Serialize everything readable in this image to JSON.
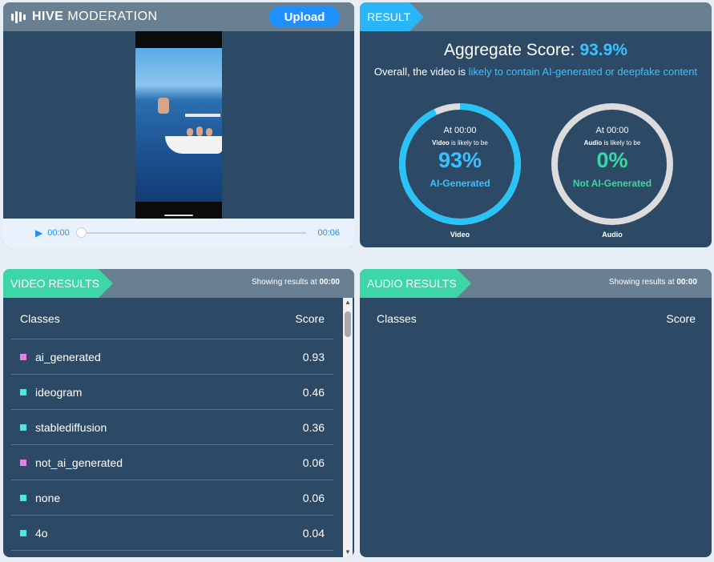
{
  "media": {
    "brand_bold": "HIVE",
    "brand_light": "MODERATION",
    "upload_label": "Upload",
    "current_time": "00:00",
    "duration": "00:06",
    "progress_fraction": 0
  },
  "result": {
    "tab_label": "RESULT",
    "aggregate_label": "Aggregate Score:",
    "aggregate_value": "93.9%",
    "overall_prefix": "Overall, the video is ",
    "overall_highlight": "likely to contain AI-generated or deepfake content",
    "video_gauge": {
      "at": "At 00:00",
      "likely_bold": "Video",
      "likely_rest": " is likely to be",
      "percent": "93%",
      "label": "AI-Generated",
      "caption": "Video",
      "fraction": 0.93,
      "color": "#29c3f7"
    },
    "audio_gauge": {
      "at": "At 00:00",
      "likely_bold": "Audio",
      "likely_rest": " is likely to be",
      "percent": "0%",
      "label": "Not AI-Generated",
      "caption": "Audio",
      "fraction": 0.0,
      "color": "#3dd6a6"
    }
  },
  "video_results": {
    "tab_label": "VIDEO RESULTS",
    "showing_prefix": "Showing results at ",
    "showing_time": "00:00",
    "col_classes": "Classes",
    "col_score": "Score",
    "rows": [
      {
        "name": "ai_generated",
        "score": "0.93",
        "color": "#e47fe4"
      },
      {
        "name": "ideogram",
        "score": "0.46",
        "color": "#4de6e0"
      },
      {
        "name": "stablediffusion",
        "score": "0.36",
        "color": "#4de6e0"
      },
      {
        "name": "not_ai_generated",
        "score": "0.06",
        "color": "#e47fe4"
      },
      {
        "name": "none",
        "score": "0.06",
        "color": "#4de6e0"
      },
      {
        "name": "4o",
        "score": "0.04",
        "color": "#4de6e0"
      }
    ]
  },
  "audio_results": {
    "tab_label": "AUDIO RESULTS",
    "showing_prefix": "Showing results at ",
    "showing_time": "00:00",
    "col_classes": "Classes",
    "col_score": "Score"
  },
  "icons": {
    "brand": "hive-logo-icon",
    "play": "play-icon",
    "scroll_up": "scroll-up-icon",
    "scroll_down": "scroll-down-icon"
  }
}
